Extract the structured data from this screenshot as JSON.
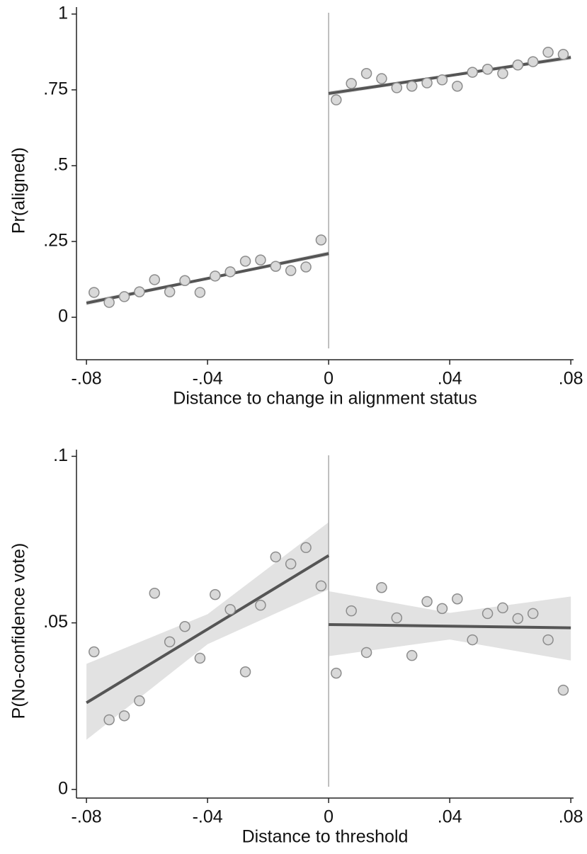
{
  "chart_data": [
    {
      "type": "scatter",
      "x_label": "Distance to change in alignment status",
      "y_label": "Pr(aligned)",
      "xlim": [
        -0.0833,
        0.0809
      ],
      "ylim": [
        -0.14,
        1.023
      ],
      "xticks": [
        {
          "value": -0.08,
          "label": "-.08"
        },
        {
          "value": -0.04,
          "label": "-.04"
        },
        0,
        {
          "value": 0.04,
          "label": ".04"
        },
        {
          "value": 0.08,
          "label": ".08"
        }
      ],
      "yticks": [
        0,
        {
          "value": 0.25,
          "label": ".25"
        },
        {
          "value": 0.5,
          "label": ".5"
        },
        {
          "value": 0.75,
          "label": ".75"
        },
        1
      ],
      "cutoff": 0,
      "point_color": "#d9d9d9",
      "line_color": "#555555",
      "band_color": "#e2e2e2",
      "x": [
        -0.0775,
        -0.0725,
        -0.0675,
        -0.0625,
        -0.0575,
        -0.0525,
        -0.0475,
        -0.0425,
        -0.0375,
        -0.0325,
        -0.0275,
        -0.0225,
        -0.0175,
        -0.0125,
        -0.0075,
        -0.0025,
        0.0025,
        0.0075,
        0.0125,
        0.0175,
        0.0225,
        0.0275,
        0.0325,
        0.0375,
        0.0425,
        0.0475,
        0.0525,
        0.0575,
        0.0625,
        0.0675,
        0.0725,
        0.0775
      ],
      "values": [
        0.082,
        0.049,
        0.068,
        0.084,
        0.124,
        0.084,
        0.121,
        0.082,
        0.136,
        0.15,
        0.185,
        0.189,
        0.168,
        0.154,
        0.166,
        0.255,
        0.717,
        0.771,
        0.804,
        0.787,
        0.757,
        0.762,
        0.773,
        0.783,
        0.762,
        0.808,
        0.818,
        0.804,
        0.832,
        0.843,
        0.874,
        0.867
      ],
      "fits": [
        {
          "x": [
            -0.08,
            -0.04,
            0
          ],
          "values": [
            0.047,
            0.128,
            0.21
          ],
          "ci_lower": [
            0.039,
            0.124,
            0.202
          ],
          "ci_upper": [
            0.055,
            0.132,
            0.218
          ]
        },
        {
          "x": [
            0,
            0.04,
            0.08
          ],
          "values": [
            0.738,
            0.797,
            0.857
          ],
          "ci_lower": [
            0.73,
            0.793,
            0.849
          ],
          "ci_upper": [
            0.746,
            0.801,
            0.865
          ]
        }
      ]
    },
    {
      "type": "scatter",
      "x_label": "Distance to threshold",
      "y_label": "P(No-confidence vote)",
      "xlim": [
        -0.0833,
        0.0809
      ],
      "ylim": [
        -0.0026,
        0.102
      ],
      "xticks": [
        {
          "value": -0.08,
          "label": "-.08"
        },
        {
          "value": -0.04,
          "label": "-.04"
        },
        0,
        {
          "value": 0.04,
          "label": ".04"
        },
        {
          "value": 0.08,
          "label": ".08"
        }
      ],
      "yticks": [
        0,
        {
          "value": 0.05,
          "label": ".05"
        },
        {
          "value": 0.1,
          "label": ".1"
        }
      ],
      "cutoff": 0,
      "point_color": "#d9d9d9",
      "line_color": "#555555",
      "band_color": "#e2e2e2",
      "x": [
        -0.0775,
        -0.0725,
        -0.0675,
        -0.0625,
        -0.0575,
        -0.0525,
        -0.0475,
        -0.0425,
        -0.0375,
        -0.0325,
        -0.0275,
        -0.0225,
        -0.0175,
        -0.0125,
        -0.0075,
        -0.0025,
        0.0025,
        0.0075,
        0.0125,
        0.0175,
        0.0225,
        0.0275,
        0.0325,
        0.0375,
        0.0425,
        0.0475,
        0.0525,
        0.0575,
        0.0625,
        0.0675,
        0.0725,
        0.0775
      ],
      "values": [
        0.0413,
        0.0209,
        0.0221,
        0.0266,
        0.0589,
        0.0443,
        0.0489,
        0.0394,
        0.0585,
        0.054,
        0.0353,
        0.0553,
        0.0698,
        0.0677,
        0.0726,
        0.0611,
        0.0349,
        0.0536,
        0.0411,
        0.0606,
        0.0515,
        0.0402,
        0.0564,
        0.0543,
        0.0572,
        0.0449,
        0.0528,
        0.0545,
        0.0513,
        0.0528,
        0.0449,
        0.0298
      ],
      "fits": [
        {
          "x": [
            -0.08,
            -0.04,
            0
          ],
          "values": [
            0.026,
            0.0481,
            0.0702
          ],
          "ci_lower": [
            0.0149,
            0.0436,
            0.06
          ],
          "ci_upper": [
            0.0377,
            0.0526,
            0.0802
          ]
        },
        {
          "x": [
            0,
            0.04,
            0.08
          ],
          "values": [
            0.0495,
            0.049,
            0.0485
          ],
          "ci_lower": [
            0.04,
            0.045,
            0.0387
          ],
          "ci_upper": [
            0.0595,
            0.053,
            0.0579
          ]
        }
      ]
    }
  ]
}
